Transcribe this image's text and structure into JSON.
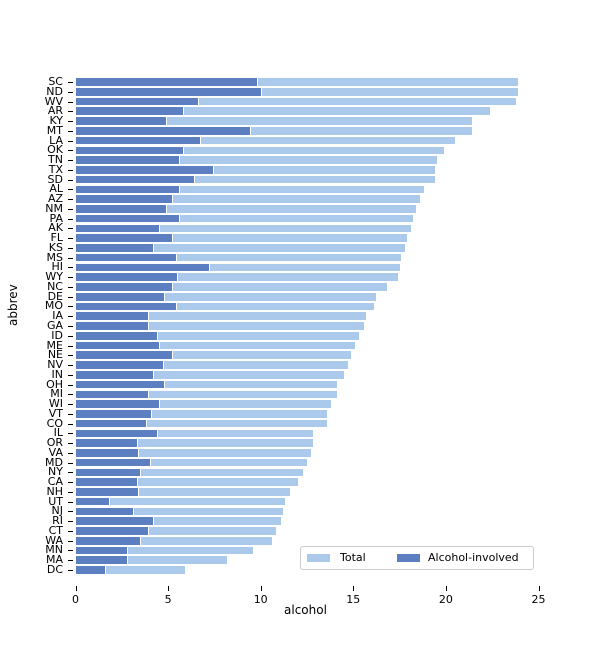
{
  "chart_data": {
    "type": "bar",
    "orientation": "horizontal",
    "title": "",
    "xlabel": "alcohol",
    "ylabel": "abbrev",
    "xlim": [
      0,
      25
    ],
    "xticks": [
      0,
      5,
      10,
      15,
      20,
      25
    ],
    "grid": false,
    "legend_position": "lower right",
    "categories": [
      "SC",
      "ND",
      "WV",
      "AR",
      "KY",
      "MT",
      "LA",
      "OK",
      "TN",
      "TX",
      "SD",
      "AL",
      "AZ",
      "NM",
      "PA",
      "AK",
      "FL",
      "KS",
      "MS",
      "HI",
      "WY",
      "NC",
      "DE",
      "MO",
      "IA",
      "GA",
      "ID",
      "ME",
      "NE",
      "NV",
      "IN",
      "OH",
      "MI",
      "WI",
      "VT",
      "CO",
      "IL",
      "OR",
      "VA",
      "MD",
      "NY",
      "CA",
      "NH",
      "UT",
      "NJ",
      "RI",
      "CT",
      "WA",
      "MN",
      "MA",
      "DC"
    ],
    "series": [
      {
        "name": "Total",
        "color": "#abc9ea",
        "values": [
          23.9,
          23.9,
          23.8,
          22.4,
          21.4,
          21.4,
          20.5,
          19.9,
          19.5,
          19.4,
          19.4,
          18.8,
          18.6,
          18.4,
          18.2,
          18.1,
          17.9,
          17.8,
          17.6,
          17.5,
          17.4,
          16.8,
          16.2,
          16.1,
          15.7,
          15.6,
          15.3,
          15.1,
          14.9,
          14.7,
          14.5,
          14.1,
          14.1,
          13.8,
          13.6,
          13.6,
          12.8,
          12.8,
          12.7,
          12.5,
          12.3,
          12.0,
          11.6,
          11.3,
          11.2,
          11.1,
          10.8,
          10.6,
          9.6,
          8.2,
          5.9
        ]
      },
      {
        "name": "Alcohol-involved",
        "color": "#5b7fc1",
        "values": [
          9.8,
          10.0,
          6.6,
          5.8,
          4.9,
          9.4,
          6.7,
          5.8,
          5.6,
          7.4,
          6.4,
          5.6,
          5.2,
          4.9,
          5.6,
          4.5,
          5.2,
          4.2,
          5.4,
          7.2,
          5.5,
          5.2,
          4.8,
          5.4,
          3.9,
          3.9,
          4.4,
          4.5,
          5.2,
          4.7,
          4.2,
          4.8,
          3.9,
          4.5,
          4.1,
          3.8,
          4.4,
          3.3,
          3.4,
          4.0,
          3.5,
          3.3,
          3.4,
          1.8,
          3.1,
          4.2,
          3.9,
          3.5,
          2.8,
          2.8,
          1.6
        ]
      }
    ]
  },
  "legend": {
    "total_label": "Total",
    "alcohol_label": "Alcohol-involved"
  }
}
